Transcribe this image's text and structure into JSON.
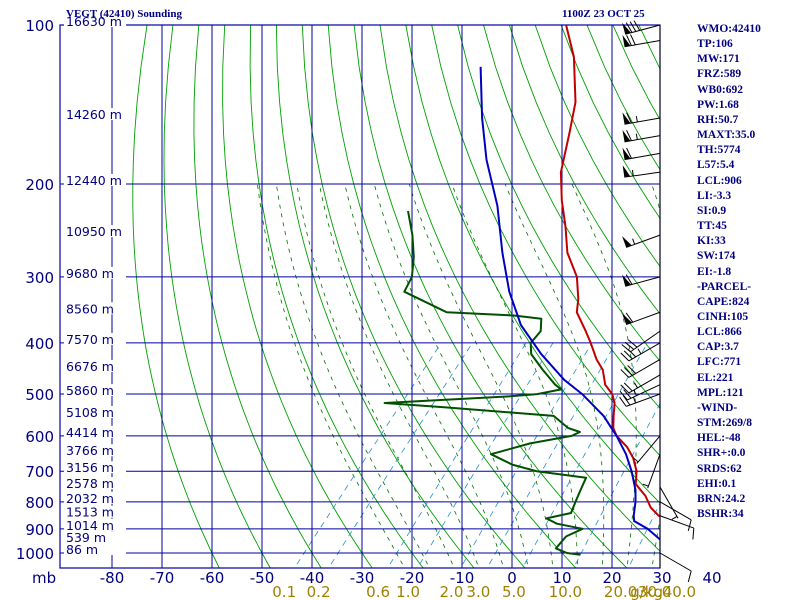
{
  "header": {
    "title": "VEGT (42410) Sounding",
    "time": "1100Z 23 OCT 25"
  },
  "indices": [
    "WMO:42410",
    "TP:106",
    "MW:171",
    "FRZ:589",
    "WB0:692",
    "PW:1.68",
    "RH:50.7",
    "MAXT:35.0",
    "TH:5774",
    "L57:5.4",
    "LCL:906",
    "LI:-3.3",
    "SI:0.9",
    "TT:45",
    "KI:33",
    "SW:174",
    "EI:-1.8",
    "-PARCEL-",
    "CAPE:824",
    "CINH:105",
    "LCL:866",
    "CAP:3.7",
    "LFC:771",
    "EL:221",
    "MPL:121",
    "-WIND-",
    "STM:269/8",
    "HEL:-48",
    "SHR+:0.0",
    "SRDS:62",
    "EHI:0.1",
    "BRN:24.2",
    "BSHR:34"
  ],
  "colors": {
    "background": "#ffffff",
    "grid": "#0000a0",
    "labels": "#000080",
    "dry_adiabats": "#00a000",
    "moist_adiabats": "#007000",
    "mixing_ratio": "#2090d0",
    "temperature": "#c00000",
    "dewpoint": "#005000",
    "parcel": "#0000c0",
    "wind": "#000000"
  },
  "chart_data": {
    "type": "skew-t",
    "title": "VEGT (42410) Sounding",
    "pressure_unit_label": "mb",
    "mixing_ratio_unit_label": "g/kg",
    "pressure_levels": [
      100,
      200,
      300,
      400,
      500,
      600,
      700,
      800,
      900,
      1000
    ],
    "pressure_range": [
      100,
      1050
    ],
    "temperature_ticks": [
      -80,
      -70,
      -60,
      -50,
      -40,
      -30,
      -20,
      -10,
      0,
      10,
      20,
      30,
      40
    ],
    "mixing_ratio_labels": [
      "0.1",
      "0.2",
      "0.6",
      "1.0",
      "2.0",
      "3.0",
      "5.0",
      "10.0",
      "20.0",
      "30.0",
      "40.0"
    ],
    "height_labels": [
      {
        "p": 100,
        "label": "16630 m"
      },
      {
        "p": 150,
        "label": "14260 m"
      },
      {
        "p": 200,
        "label": "12440 m"
      },
      {
        "p": 250,
        "label": "10950 m"
      },
      {
        "p": 300,
        "label": "9680 m"
      },
      {
        "p": 350,
        "label": "8560 m"
      },
      {
        "p": 400,
        "label": "7570 m"
      },
      {
        "p": 450,
        "label": "6676 m"
      },
      {
        "p": 500,
        "label": "5860 m"
      },
      {
        "p": 550,
        "label": "5108 m"
      },
      {
        "p": 600,
        "label": "4414 m"
      },
      {
        "p": 650,
        "label": "3766 m"
      },
      {
        "p": 700,
        "label": "3156 m"
      },
      {
        "p": 750,
        "label": "2578 m"
      },
      {
        "p": 800,
        "label": "2032 m"
      },
      {
        "p": 850,
        "label": "1513 m"
      },
      {
        "p": 900,
        "label": "1014 m"
      },
      {
        "p": 950,
        "label": "539 m"
      },
      {
        "p": 1000,
        "label": "86 m"
      }
    ],
    "series": [
      {
        "name": "temperature",
        "points": [
          [
            100,
            -79
          ],
          [
            115,
            -72
          ],
          [
            140,
            -64
          ],
          [
            160,
            -60
          ],
          [
            190,
            -55
          ],
          [
            215,
            -50
          ],
          [
            240,
            -45
          ],
          [
            270,
            -40
          ],
          [
            300,
            -34
          ],
          [
            330,
            -30
          ],
          [
            350,
            -28
          ],
          [
            380,
            -23
          ],
          [
            400,
            -20
          ],
          [
            430,
            -16
          ],
          [
            450,
            -13
          ],
          [
            480,
            -10
          ],
          [
            500,
            -7
          ],
          [
            520,
            -5
          ],
          [
            550,
            -3
          ],
          [
            580,
            -1
          ],
          [
            600,
            1
          ],
          [
            630,
            5
          ],
          [
            660,
            8
          ],
          [
            700,
            11
          ],
          [
            740,
            13
          ],
          [
            780,
            17
          ],
          [
            820,
            20
          ],
          [
            850,
            23
          ],
          [
            860,
            25
          ],
          [
            900,
            26
          ],
          [
            940,
            29
          ],
          [
            975,
            32
          ],
          [
            990,
            31
          ],
          [
            1000,
            32
          ],
          [
            1008,
            32
          ]
        ]
      },
      {
        "name": "dewpoint",
        "points": [
          [
            225,
            -79
          ],
          [
            250,
            -74
          ],
          [
            275,
            -70
          ],
          [
            300,
            -67
          ],
          [
            320,
            -66
          ],
          [
            350,
            -54
          ],
          [
            355,
            -40
          ],
          [
            360,
            -34
          ],
          [
            380,
            -32
          ],
          [
            390,
            -32
          ],
          [
            400,
            -32
          ],
          [
            420,
            -30
          ],
          [
            450,
            -25
          ],
          [
            480,
            -20
          ],
          [
            490,
            -18
          ],
          [
            500,
            -22
          ],
          [
            505,
            -27
          ],
          [
            520,
            -51
          ],
          [
            530,
            -38
          ],
          [
            550,
            -15
          ],
          [
            580,
            -10
          ],
          [
            590,
            -7
          ],
          [
            600,
            -8
          ],
          [
            620,
            -15
          ],
          [
            650,
            -21
          ],
          [
            680,
            -15
          ],
          [
            700,
            -9
          ],
          [
            720,
            2
          ],
          [
            760,
            3
          ],
          [
            800,
            4
          ],
          [
            840,
            5
          ],
          [
            860,
            1
          ],
          [
            880,
            4
          ],
          [
            900,
            10
          ],
          [
            930,
            8
          ],
          [
            950,
            8
          ],
          [
            980,
            8
          ],
          [
            1000,
            11
          ],
          [
            1008,
            14
          ]
        ]
      },
      {
        "name": "parcel",
        "points": [
          [
            120,
            -89
          ],
          [
            150,
            -80
          ],
          [
            180,
            -72
          ],
          [
            220,
            -62
          ],
          [
            270,
            -53
          ],
          [
            320,
            -45
          ],
          [
            370,
            -37
          ],
          [
            420,
            -28
          ],
          [
            470,
            -19
          ],
          [
            500,
            -13
          ],
          [
            550,
            -5
          ],
          [
            600,
            1
          ],
          [
            650,
            6
          ],
          [
            700,
            10
          ],
          [
            760,
            14
          ],
          [
            800,
            16
          ],
          [
            850,
            18
          ],
          [
            870,
            19
          ],
          [
            900,
            23
          ],
          [
            950,
            28
          ],
          [
            1000,
            32
          ],
          [
            1008,
            33
          ]
        ]
      }
    ],
    "wind_barbs": [
      {
        "p": 100,
        "dir": 255,
        "spd": 80
      },
      {
        "p": 107,
        "dir": 260,
        "spd": 70
      },
      {
        "p": 150,
        "dir": 260,
        "spd": 65
      },
      {
        "p": 162,
        "dir": 260,
        "spd": 65
      },
      {
        "p": 175,
        "dir": 260,
        "spd": 60
      },
      {
        "p": 190,
        "dir": 262,
        "spd": 55
      },
      {
        "p": 250,
        "dir": 250,
        "spd": 55
      },
      {
        "p": 300,
        "dir": 255,
        "spd": 60
      },
      {
        "p": 350,
        "dir": 250,
        "spd": 60
      },
      {
        "p": 380,
        "dir": 235,
        "spd": 30
      },
      {
        "p": 400,
        "dir": 240,
        "spd": 35
      },
      {
        "p": 430,
        "dir": 240,
        "spd": 30
      },
      {
        "p": 460,
        "dir": 240,
        "spd": 25
      },
      {
        "p": 480,
        "dir": 245,
        "spd": 25
      },
      {
        "p": 500,
        "dir": 250,
        "spd": 25
      },
      {
        "p": 600,
        "dir": 220,
        "spd": 5
      },
      {
        "p": 650,
        "dir": 200,
        "spd": 5
      },
      {
        "p": 750,
        "dir": 150,
        "spd": 5
      },
      {
        "p": 800,
        "dir": 120,
        "spd": 10
      },
      {
        "p": 850,
        "dir": 110,
        "spd": 10
      },
      {
        "p": 1000,
        "dir": 120,
        "spd": 10
      }
    ]
  }
}
